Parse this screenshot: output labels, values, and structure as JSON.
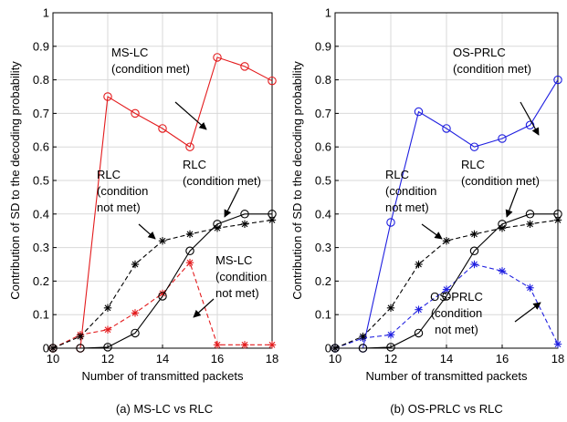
{
  "chart_data": [
    {
      "type": "line",
      "caption": "(a) MS-LC vs RLC",
      "xlabel": "Number of transmitted packets",
      "ylabel": "Contribution of SD to the decoding probability",
      "xlim": [
        10,
        18
      ],
      "ylim": [
        0,
        1
      ],
      "xticks": [
        "10",
        "12",
        "14",
        "16",
        "18"
      ],
      "yticks": [
        "0",
        "0.1",
        "0.2",
        "0.3",
        "0.4",
        "0.5",
        "0.6",
        "0.7",
        "0.8",
        "0.9",
        "1"
      ],
      "x": [
        10,
        11,
        12,
        13,
        14,
        15,
        16,
        17,
        18
      ],
      "series": [
        {
          "color": "#e31a1c",
          "line": "solid",
          "marker": "circle",
          "values": [
            0,
            0,
            0.75,
            0.7,
            0.655,
            0.6,
            0.867,
            0.84,
            0.797
          ]
        },
        {
          "color": "#e31a1c",
          "line": "dashed",
          "marker": "star",
          "values": [
            0,
            0.04,
            0.055,
            0.105,
            0.163,
            0.255,
            0.01,
            0.01,
            0.01
          ]
        },
        {
          "color": "#000000",
          "line": "solid",
          "marker": "circle",
          "values": [
            0,
            0,
            0.003,
            0.045,
            0.155,
            0.29,
            0.37,
            0.4,
            0.4
          ]
        },
        {
          "color": "#000000",
          "line": "dashed",
          "marker": "star",
          "values": [
            0,
            0.035,
            0.12,
            0.25,
            0.32,
            0.34,
            0.358,
            0.37,
            0.382
          ]
        }
      ],
      "annotations": [
        {
          "lines": [
            "MS-LC",
            "(condition met)"
          ]
        },
        {
          "lines": [
            "RLC",
            "(condition met)"
          ]
        },
        {
          "lines": [
            "RLC",
            "(condition",
            "not met)"
          ]
        },
        {
          "lines": [
            "MS-LC",
            "(condition",
            "not met)"
          ]
        }
      ],
      "grid": true
    },
    {
      "type": "line",
      "caption": "(b) OS-PRLC vs RLC",
      "xlabel": "Number of transmitted packets",
      "ylabel": "Contribution of SD to the decoding probability",
      "xlim": [
        10,
        18
      ],
      "ylim": [
        0,
        1
      ],
      "xticks": [
        "10",
        "12",
        "14",
        "16",
        "18"
      ],
      "yticks": [
        "0",
        "0.1",
        "0.2",
        "0.3",
        "0.4",
        "0.5",
        "0.6",
        "0.7",
        "0.8",
        "0.9",
        "1"
      ],
      "x": [
        10,
        11,
        12,
        13,
        14,
        15,
        16,
        17,
        18
      ],
      "series": [
        {
          "color": "#1f1fe0",
          "line": "solid",
          "marker": "circle",
          "values": [
            0,
            0,
            0.375,
            0.705,
            0.655,
            0.6,
            0.625,
            0.665,
            0.8
          ]
        },
        {
          "color": "#1f1fe0",
          "line": "dashed",
          "marker": "star",
          "values": [
            0,
            0.03,
            0.04,
            0.115,
            0.175,
            0.25,
            0.23,
            0.18,
            0.012
          ]
        },
        {
          "color": "#000000",
          "line": "solid",
          "marker": "circle",
          "values": [
            0,
            0,
            0.003,
            0.045,
            0.155,
            0.29,
            0.37,
            0.4,
            0.4
          ]
        },
        {
          "color": "#000000",
          "line": "dashed",
          "marker": "star",
          "values": [
            0,
            0.035,
            0.12,
            0.25,
            0.32,
            0.34,
            0.358,
            0.37,
            0.382
          ]
        }
      ],
      "annotations": [
        {
          "lines": [
            "OS-PRLC",
            "(condition met)"
          ]
        },
        {
          "lines": [
            "RLC",
            "(condition met)"
          ]
        },
        {
          "lines": [
            "RLC",
            "(condition",
            "not met)"
          ]
        },
        {
          "lines": [
            "OS-PRLC",
            "(condition",
            "not met)"
          ]
        }
      ],
      "grid": true
    }
  ]
}
